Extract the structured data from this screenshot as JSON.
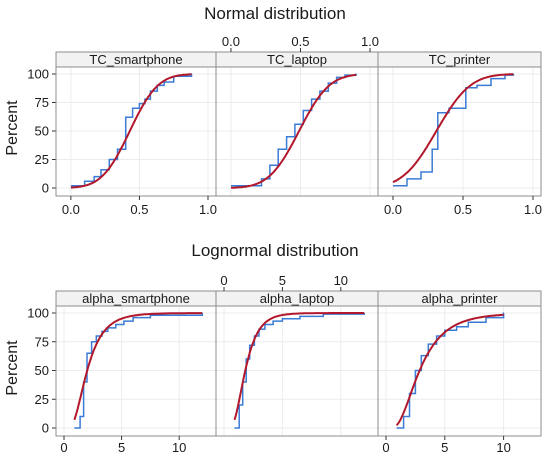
{
  "colors": {
    "ecdf": "#3a7bd5",
    "fit": "#b2182b",
    "strip_bg": "#f2f2f2",
    "grid": "#ececec",
    "border": "#8c8c8c"
  },
  "chart_data": [
    {
      "type": "line",
      "title": "Normal distribution",
      "ylabel": "Percent",
      "xlabel": "",
      "xlim": [
        -0.05,
        1.0
      ],
      "ylim": [
        0,
        100
      ],
      "yticks": [
        0,
        25,
        50,
        75,
        100
      ],
      "grid": true,
      "legend": "none",
      "facets": [
        {
          "label": "TC_smartphone",
          "xticks": [
            "0.0",
            "0.5",
            "1.0"
          ],
          "x_axis_side": "bottom",
          "ecdf_x": [
            0.0,
            0.1,
            0.17,
            0.22,
            0.28,
            0.34,
            0.4,
            0.45,
            0.5,
            0.54,
            0.58,
            0.63,
            0.68,
            0.75,
            0.88
          ],
          "ecdf_y": [
            2,
            6,
            10,
            16,
            25,
            34,
            62,
            70,
            74,
            78,
            85,
            90,
            93,
            98,
            100
          ],
          "fit_mean": 0.43,
          "fit_sd": 0.16
        },
        {
          "label": "TC_laptop",
          "xticks": [
            "0.0",
            "0.5",
            "1.0"
          ],
          "x_axis_side": "top",
          "ecdf_x": [
            0.0,
            0.22,
            0.28,
            0.34,
            0.4,
            0.46,
            0.52,
            0.58,
            0.64,
            0.7,
            0.76,
            0.82,
            0.9
          ],
          "ecdf_y": [
            2,
            8,
            20,
            34,
            45,
            56,
            68,
            78,
            85,
            92,
            97,
            99,
            100
          ],
          "fit_mean": 0.49,
          "fit_sd": 0.17
        },
        {
          "label": "TC_printer",
          "xticks": [
            "0.0",
            "0.5",
            "1.0"
          ],
          "x_axis_side": "bottom",
          "ecdf_x": [
            0.0,
            0.1,
            0.2,
            0.28,
            0.32,
            0.4,
            0.52,
            0.6,
            0.7,
            0.8,
            0.86
          ],
          "ecdf_y": [
            2,
            8,
            14,
            34,
            66,
            70,
            88,
            90,
            96,
            99,
            100
          ],
          "fit_mean": 0.31,
          "fit_sd": 0.19
        }
      ]
    },
    {
      "type": "line",
      "title": "Lognormal distribution",
      "ylabel": "Percent",
      "xlabel": "",
      "xlim": [
        0,
        12.5
      ],
      "ylim": [
        0,
        100
      ],
      "yticks": [
        0,
        25,
        50,
        75,
        100
      ],
      "grid": true,
      "legend": "none",
      "facets": [
        {
          "label": "alpha_smartphone",
          "xticks": [
            "0",
            "5",
            "10"
          ],
          "x_axis_side": "bottom",
          "ecdf_x": [
            0.9,
            1.4,
            1.7,
            2.0,
            2.4,
            2.8,
            3.3,
            3.8,
            4.5,
            5.2,
            6.0,
            7.5,
            12.0
          ],
          "ecdf_y": [
            0,
            10,
            40,
            65,
            75,
            80,
            84,
            87,
            90,
            93,
            96,
            98,
            100
          ],
          "fit_mu": 0.7,
          "fit_sigma": 0.55
        },
        {
          "label": "alpha_laptop",
          "xticks": [
            "0",
            "5",
            "10"
          ],
          "x_axis_side": "top",
          "ecdf_x": [
            0.9,
            1.3,
            1.6,
            1.9,
            2.2,
            2.6,
            3.0,
            3.5,
            4.2,
            5.0,
            6.5,
            8.5,
            12.0
          ],
          "ecdf_y": [
            0,
            20,
            40,
            60,
            72,
            80,
            86,
            90,
            93,
            95,
            97,
            99,
            100
          ],
          "fit_mu": 0.6,
          "fit_sigma": 0.48
        },
        {
          "label": "alpha_printer",
          "xticks": [
            "0",
            "5",
            "10"
          ],
          "x_axis_side": "bottom",
          "ecdf_x": [
            0.9,
            1.5,
            2.0,
            2.5,
            3.0,
            3.6,
            4.3,
            5.0,
            6.0,
            7.0,
            8.5,
            10.0
          ],
          "ecdf_y": [
            0,
            10,
            30,
            50,
            63,
            73,
            80,
            85,
            88,
            92,
            96,
            100
          ],
          "fit_mu": 1.05,
          "fit_sigma": 0.58
        }
      ]
    }
  ]
}
